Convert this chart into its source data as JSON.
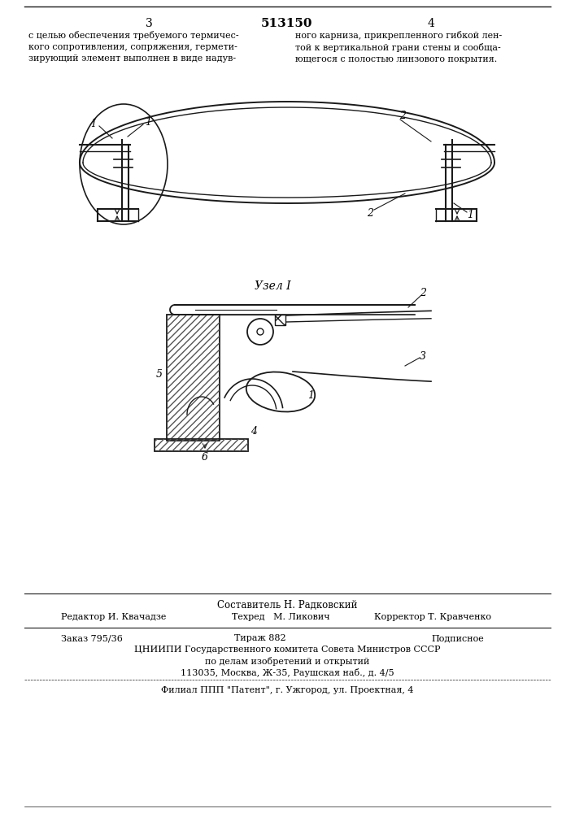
{
  "title": "513150",
  "page_left": "3",
  "page_right": "4",
  "text_left": "с целью обеспечения требуемого термичес-\nкого сопротивления, сопряжения, гермети-\nзирующий элемент выполнен в виде надув-",
  "text_right": "ного карниза, прикрепленного гибкой лен-\nтой к вертикальной грани стены и сообща-\nющегося с полостью линзового покрытия.",
  "uzел_label": "Узел I",
  "footer_line1": "Составитель Н. Радковский",
  "footer_line2_left": "Редактор И. Квачадзе",
  "footer_line2_mid": "Техред   М. Ликович",
  "footer_line2_right": "Корректор Т. Кравченко",
  "footer_line3_left": "Заказ 795/36",
  "footer_line3_mid": "Тираж 882",
  "footer_line3_right": "Подписное",
  "footer_line4": "ЦНИИПИ Государственного комитета Совета Министров СССР",
  "footer_line5": "по делам изобретений и открытий",
  "footer_line6": "113035, Москва, Ж-35, Раушская наб., д. 4/5",
  "footer_line7": "Филиал ППП \"Патент\", г. Ужгород, ул. Проектная, 4",
  "bg_color": "#ffffff",
  "line_color": "#1a1a1a",
  "hatch_color": "#333333",
  "text_color": "#000000"
}
